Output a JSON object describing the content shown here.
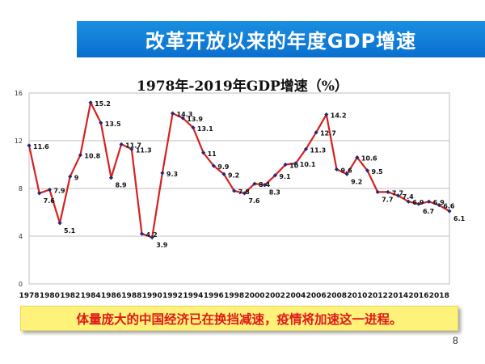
{
  "slide": {
    "banner_title": "改革开放以来的年度GDP增速",
    "callout": "体量庞大的中国经济已在换挡减速，疫情将加速这一进程。",
    "page_number": "8"
  },
  "chart_data": {
    "type": "line",
    "title": "1978年-2019年GDP增速（%）",
    "xlabel": "",
    "ylabel": "",
    "x": [
      1978,
      1979,
      1980,
      1981,
      1982,
      1983,
      1984,
      1985,
      1986,
      1987,
      1988,
      1989,
      1990,
      1991,
      1992,
      1993,
      1994,
      1995,
      1996,
      1997,
      1998,
      1999,
      2000,
      2001,
      2002,
      2003,
      2004,
      2005,
      2006,
      2007,
      2008,
      2009,
      2010,
      2011,
      2012,
      2013,
      2014,
      2015,
      2016,
      2017,
      2018,
      2019
    ],
    "series": [
      {
        "name": "GDP增速",
        "values": [
          11.6,
          7.6,
          7.9,
          5.1,
          9,
          10.8,
          15.2,
          13.5,
          8.9,
          11.7,
          11.3,
          4.2,
          3.9,
          9.3,
          14.3,
          13.9,
          13.1,
          11,
          9.9,
          9.2,
          7.8,
          7.6,
          8.4,
          8.3,
          9.1,
          10,
          10.1,
          11.3,
          12.7,
          14.2,
          9.6,
          9.2,
          10.6,
          9.5,
          7.7,
          7.7,
          7.4,
          6.9,
          6.7,
          6.9,
          6.6,
          6.1
        ]
      }
    ],
    "data_labels": [
      "11.6",
      "7.6",
      "7.9",
      "5.1",
      "9",
      "10.8",
      "15.2",
      "13.5",
      "8.9",
      "11.7",
      "11.3",
      "4.2",
      "3.9",
      "9.3",
      "14.3",
      "13.9",
      "13.1",
      "11",
      "9.9",
      "9.2",
      "7.8",
      "7.6",
      "8.4",
      "8.3",
      "9.1",
      "10",
      "10.1",
      "11.3",
      "12.7",
      "14.2",
      "9.6",
      "9.2",
      "10.6",
      "9.5",
      "7.7",
      "7.7",
      "7.4",
      "6.9",
      "6.7",
      "6.9",
      "6.6",
      "6.1"
    ],
    "xtick_labels": [
      "1978",
      "1980",
      "1982",
      "1984",
      "1986",
      "1988",
      "1990",
      "1992",
      "1994",
      "1996",
      "1998",
      "2000",
      "2002",
      "2004",
      "2006",
      "2008",
      "2010",
      "2012",
      "2014",
      "2016",
      "2018"
    ],
    "ytick_labels": [
      "0",
      "4",
      "8",
      "12",
      "16"
    ],
    "yticks": [
      0,
      4,
      8,
      12,
      16
    ],
    "ylim": [
      0,
      16
    ],
    "xlim": [
      1978,
      2019
    ],
    "grid": "horizontal",
    "colors": {
      "line": "#d62020",
      "marker": "#1f2a78",
      "label": "#111111"
    }
  }
}
